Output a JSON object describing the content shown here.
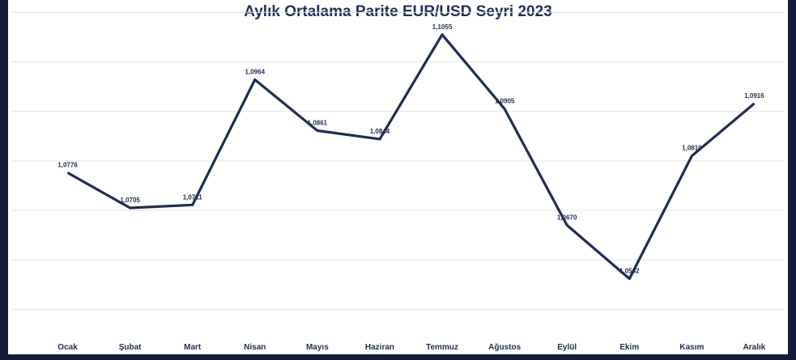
{
  "chart_data": {
    "type": "line",
    "title": "Aylık Ortalama Parite EUR/USD Seyri 2023",
    "categories": [
      "Ocak",
      "Şubat",
      "Mart",
      "Nisan",
      "Mayıs",
      "Haziran",
      "Temmuz",
      "Ağustos",
      "Eylül",
      "Ekim",
      "Kasım",
      "Aralık"
    ],
    "series": [
      {
        "values": [
          1.0776,
          1.0705,
          1.0711,
          1.0964,
          1.0861,
          1.0844,
          1.1055,
          1.0905,
          1.067,
          1.0562,
          1.081,
          1.0916
        ],
        "labels": [
          "1,0776",
          "1,0705",
          "1,0711",
          "1,0964",
          "1,0861",
          "1,0844",
          "1,1055",
          "1,0905",
          "1,0670",
          "1,0562",
          "1,0810",
          "1,0916"
        ],
        "color": "#1f2d52"
      }
    ],
    "ylim": [
      1.045,
      1.1125
    ],
    "grid": true,
    "legend": "none"
  }
}
